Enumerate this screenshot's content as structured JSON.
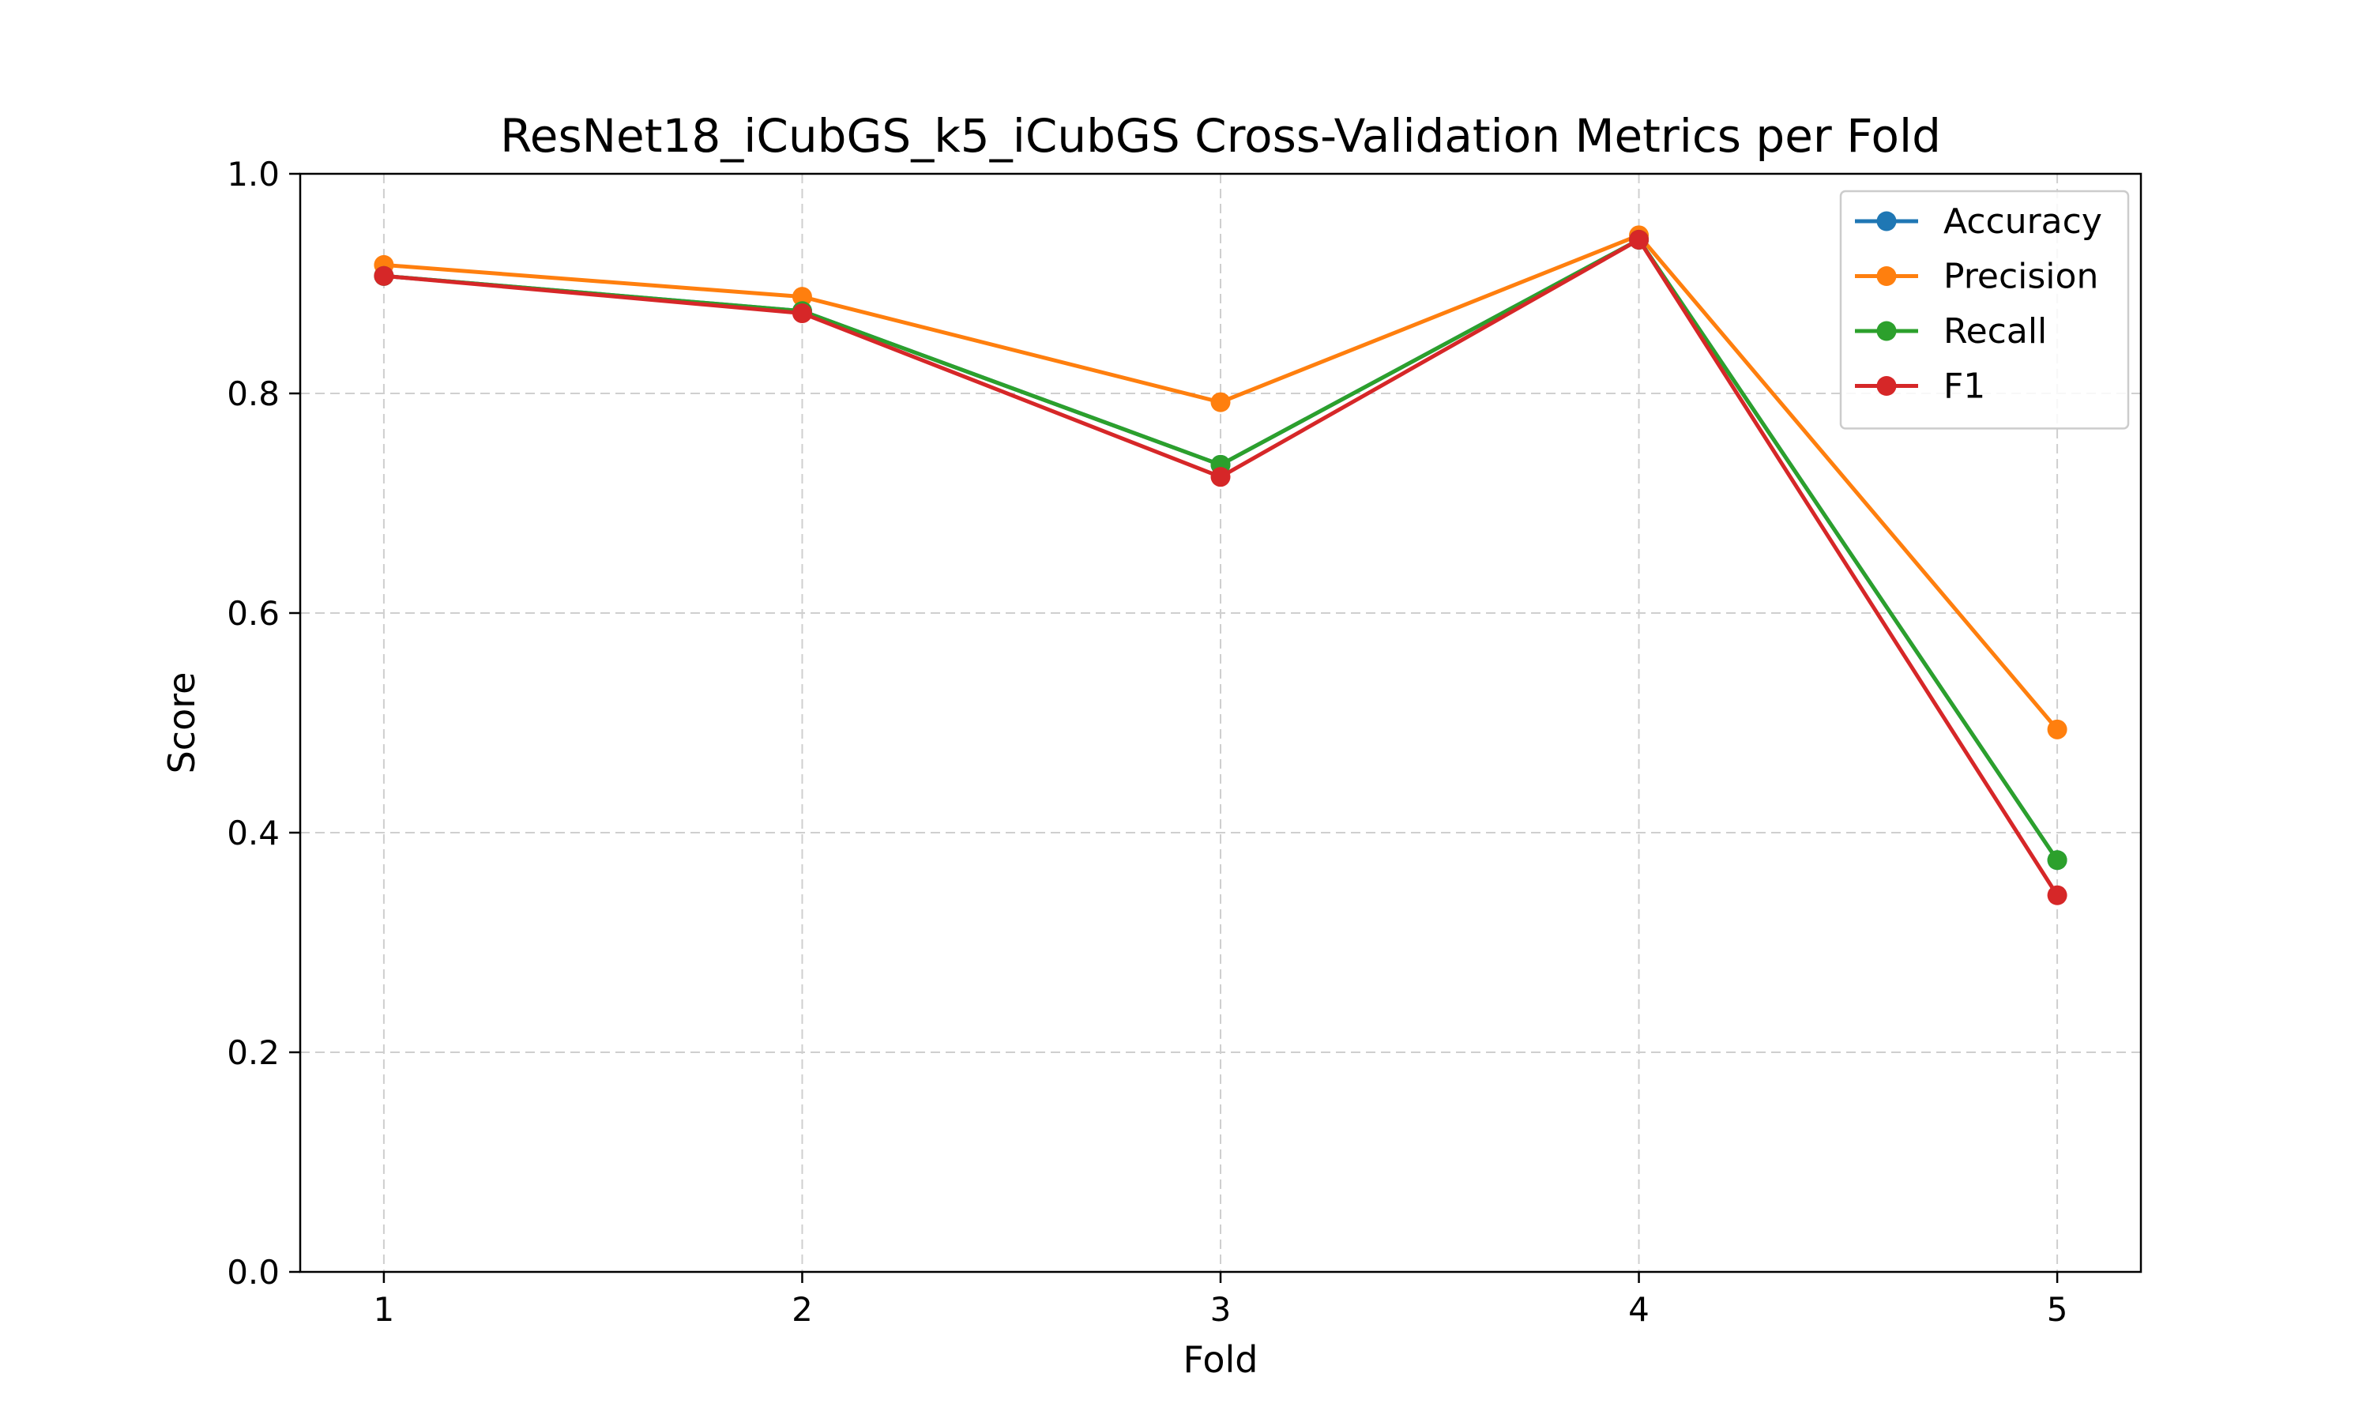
{
  "chart_data": {
    "type": "line",
    "title": "ResNet18_iCubGS_k5_iCubGS Cross-Validation Metrics per Fold",
    "xlabel": "Fold",
    "ylabel": "Score",
    "x": [
      1,
      2,
      3,
      4,
      5
    ],
    "x_tick_labels": [
      "1",
      "2",
      "3",
      "4",
      "5"
    ],
    "xlim": [
      0.8,
      5.2
    ],
    "ylim": [
      0.0,
      1.0
    ],
    "y_ticks": [
      0.0,
      0.2,
      0.4,
      0.6,
      0.8,
      1.0
    ],
    "y_tick_labels": [
      "0.0",
      "0.2",
      "0.4",
      "0.6",
      "0.8",
      "1.0"
    ],
    "grid": true,
    "legend_position": "top-right",
    "series": [
      {
        "name": "Accuracy",
        "color": "#1f77b4",
        "values": [
          0.907,
          0.875,
          0.735,
          0.94,
          0.375
        ]
      },
      {
        "name": "Precision",
        "color": "#ff7f0e",
        "values": [
          0.917,
          0.888,
          0.792,
          0.944,
          0.494
        ]
      },
      {
        "name": "Recall",
        "color": "#2ca02c",
        "values": [
          0.907,
          0.875,
          0.735,
          0.94,
          0.375
        ]
      },
      {
        "name": "F1",
        "color": "#d62728",
        "values": [
          0.907,
          0.873,
          0.724,
          0.94,
          0.343
        ]
      }
    ]
  }
}
